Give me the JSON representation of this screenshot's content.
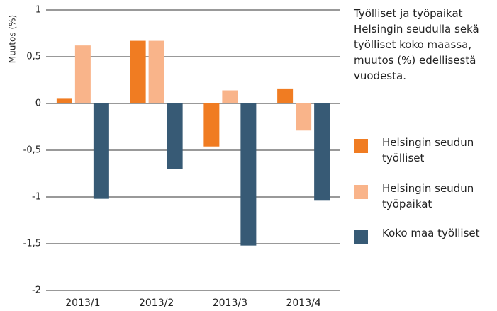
{
  "chart_data": {
    "type": "bar",
    "title": "Työlliset ja työpaikat Helsingin seudulla sekä työlliset koko maassa, muutos (%) edellisestä vuodesta.",
    "y_label": "Muutos (%)",
    "categories": [
      "2013/1",
      "2013/2",
      "2013/3",
      "2013/4"
    ],
    "series": [
      {
        "name": "Helsingin seudun työlliset",
        "color": "#f07c22",
        "values": [
          0.05,
          0.67,
          -0.46,
          0.16
        ]
      },
      {
        "name": "Helsingin seudun työpaikat",
        "color": "#f9b48a",
        "values": [
          0.62,
          0.67,
          0.14,
          -0.29
        ]
      },
      {
        "name": "Koko maa työlliset",
        "color": "#375a75",
        "values": [
          -1.02,
          -0.7,
          -1.52,
          -1.04
        ]
      }
    ],
    "ylim": [
      -2,
      1
    ],
    "yticks": [
      1,
      {
        "value": 0.5,
        "label": "0,5"
      },
      0,
      {
        "value": -0.5,
        "label": "-0,5"
      },
      -1,
      {
        "value": -1.5,
        "label": "-1,5"
      },
      -2
    ],
    "grid": true,
    "legend": "right"
  }
}
